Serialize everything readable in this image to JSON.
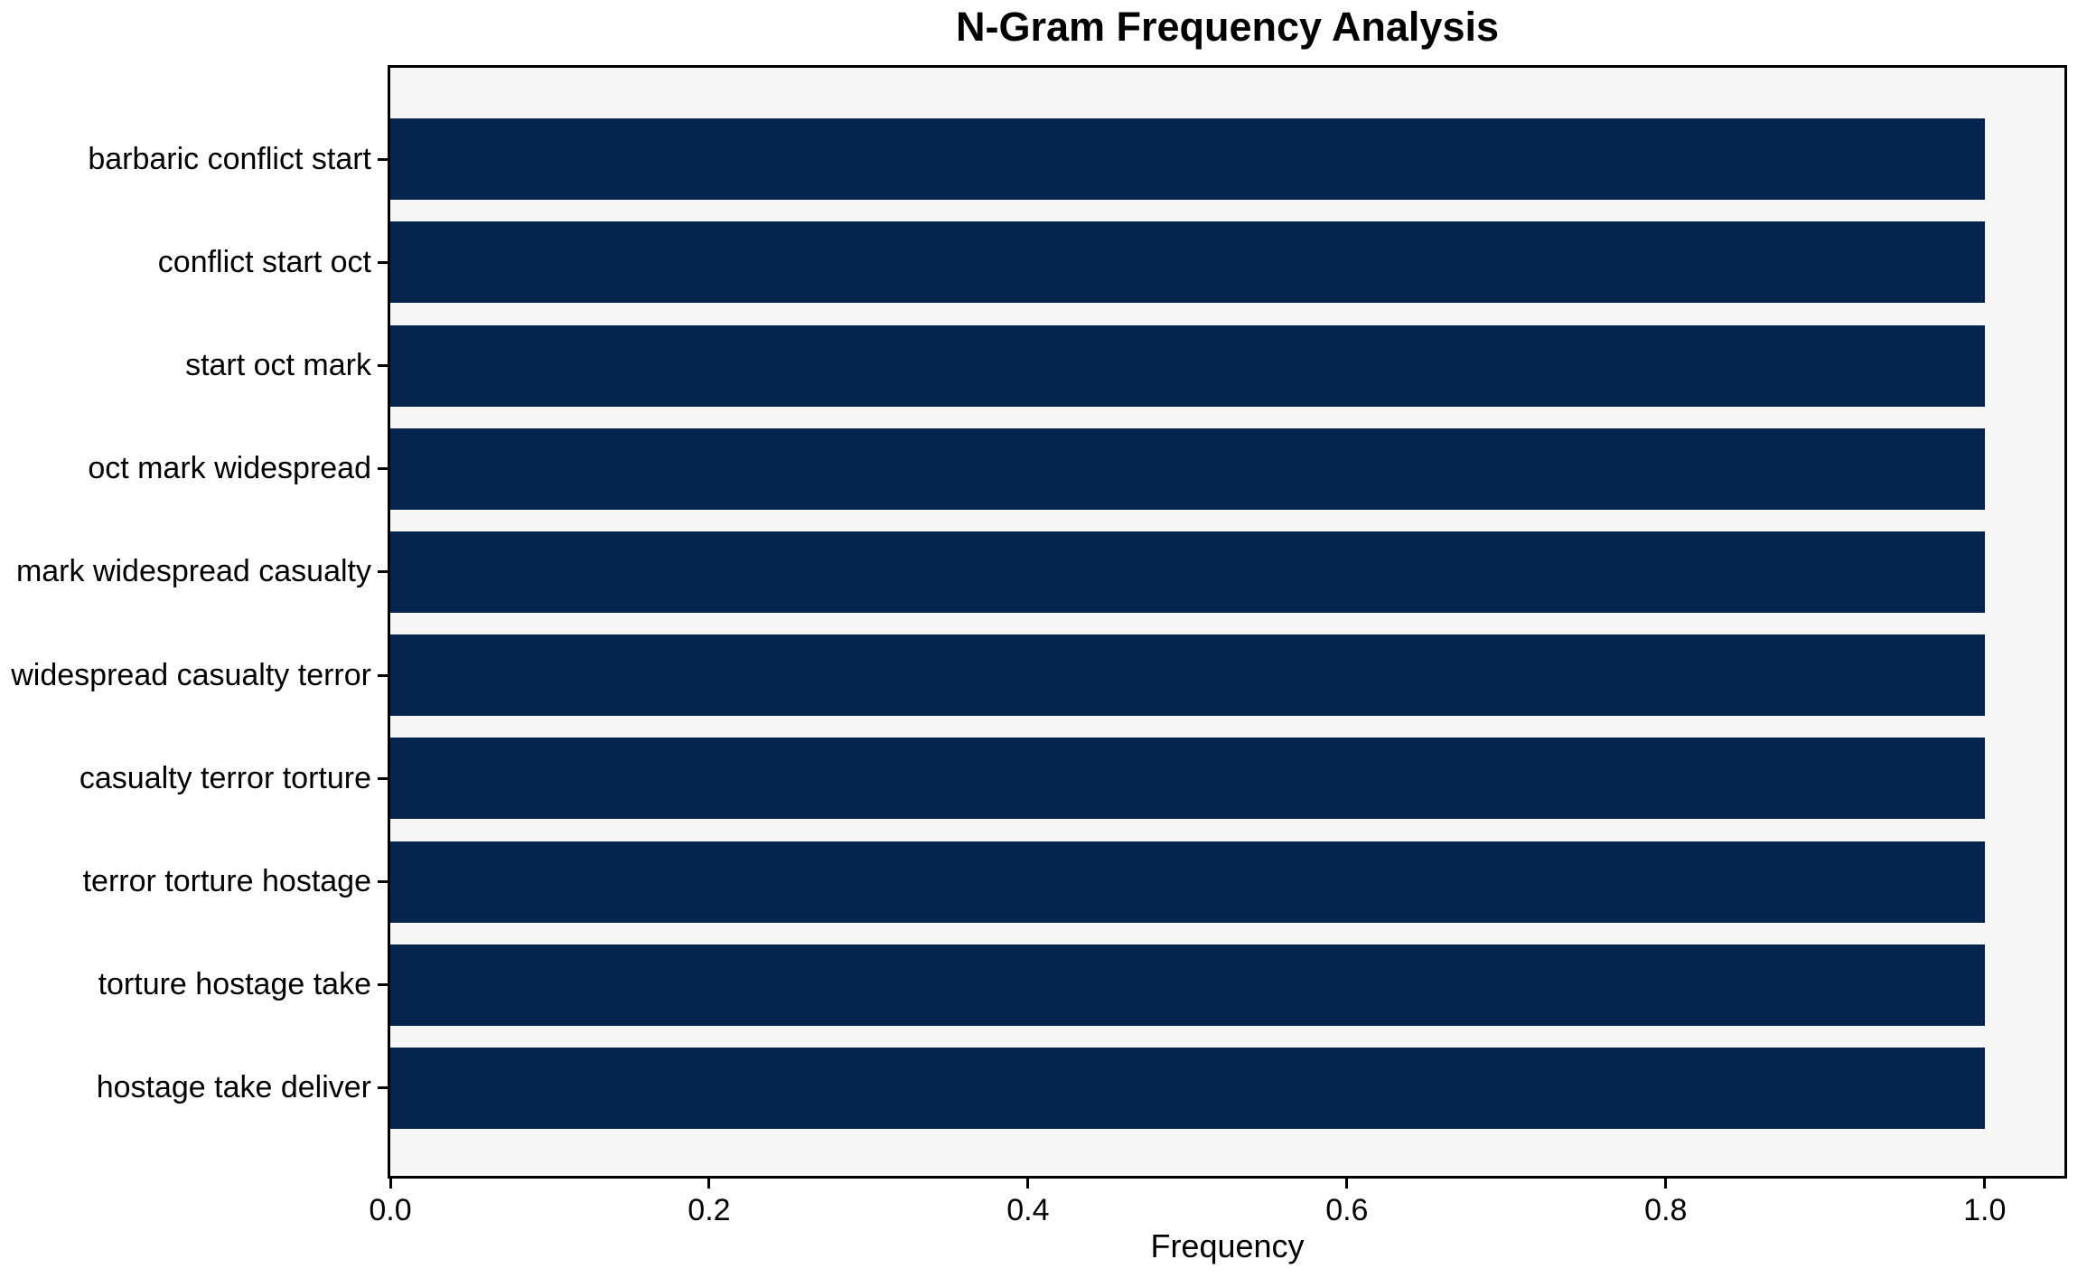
{
  "chart_data": {
    "type": "bar",
    "orientation": "horizontal",
    "title": "N-Gram Frequency Analysis",
    "xlabel": "Frequency",
    "ylabel": "",
    "categories": [
      "barbaric conflict start",
      "conflict start oct",
      "start oct mark",
      "oct mark widespread",
      "mark widespread casualty",
      "widespread casualty terror",
      "casualty terror torture",
      "terror torture hostage",
      "torture hostage take",
      "hostage take deliver"
    ],
    "values": [
      1.0,
      1.0,
      1.0,
      1.0,
      1.0,
      1.0,
      1.0,
      1.0,
      1.0,
      1.0
    ],
    "x_ticks": [
      0.0,
      0.2,
      0.4,
      0.6,
      0.8,
      1.0
    ],
    "x_tick_labels": [
      "0.0",
      "0.2",
      "0.4",
      "0.6",
      "0.8",
      "1.0"
    ],
    "xlim": [
      0,
      1.05
    ],
    "grid": false,
    "legend_position": "none",
    "colors": {
      "bar": "#05244e",
      "plot_background": "#f6f6f6",
      "figure_background": "#ffffff",
      "spine": "#000000",
      "text": "#000000"
    }
  }
}
